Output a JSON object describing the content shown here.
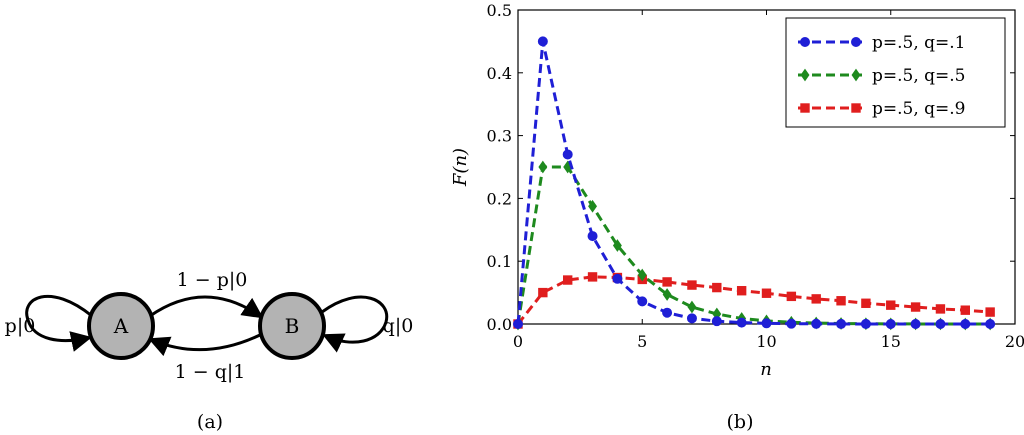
{
  "diagram": {
    "nodes": [
      {
        "id": "A",
        "label": "A",
        "fill": "#b3b3b3"
      },
      {
        "id": "B",
        "label": "B",
        "fill": "#b3b3b3"
      }
    ],
    "edges": [
      {
        "from": "A",
        "to": "A",
        "label": "p|0"
      },
      {
        "from": "A",
        "to": "B",
        "label": "1 − p|0"
      },
      {
        "from": "B",
        "to": "A",
        "label": "1 − q|1"
      },
      {
        "from": "B",
        "to": "B",
        "label": "q|0"
      }
    ],
    "caption": "(a)"
  },
  "chart_caption": "(b)",
  "chart_data": {
    "type": "line",
    "xlabel": "n",
    "ylabel": "F(n)",
    "xlim": [
      0,
      20
    ],
    "ylim": [
      0,
      0.5
    ],
    "xticks": [
      "0",
      "5",
      "10",
      "15",
      "20"
    ],
    "yticks": [
      "0.0",
      "0.1",
      "0.2",
      "0.3",
      "0.4",
      "0.5"
    ],
    "grid": false,
    "legend_position": "top-right",
    "x": [
      0,
      1,
      2,
      3,
      4,
      5,
      6,
      7,
      8,
      9,
      10,
      11,
      12,
      13,
      14,
      15,
      16,
      17,
      18,
      19
    ],
    "series": [
      {
        "name": "p=.5, q=.1",
        "color": "#1f1fd6",
        "marker": "circle",
        "values": [
          0,
          0.45,
          0.27,
          0.14,
          0.072,
          0.036,
          0.018,
          0.009,
          0.0045,
          0.0022,
          0.0011,
          0.0005,
          0.0003,
          0.0001,
          0.0001,
          0,
          0,
          0,
          0,
          0
        ]
      },
      {
        "name": "p=.5, q=.5",
        "color": "#1e8a1e",
        "marker": "diamond",
        "values": [
          0,
          0.25,
          0.25,
          0.1875,
          0.125,
          0.078,
          0.047,
          0.027,
          0.016,
          0.0088,
          0.0049,
          0.0027,
          0.0015,
          0.0008,
          0.0004,
          0.0002,
          0.0001,
          0.0001,
          0,
          0
        ]
      },
      {
        "name": "p=.5, q=.9",
        "color": "#e01e1e",
        "marker": "square",
        "values": [
          0,
          0.05,
          0.07,
          0.075,
          0.074,
          0.071,
          0.067,
          0.062,
          0.058,
          0.053,
          0.049,
          0.044,
          0.04,
          0.037,
          0.033,
          0.03,
          0.027,
          0.024,
          0.022,
          0.019
        ]
      }
    ]
  }
}
